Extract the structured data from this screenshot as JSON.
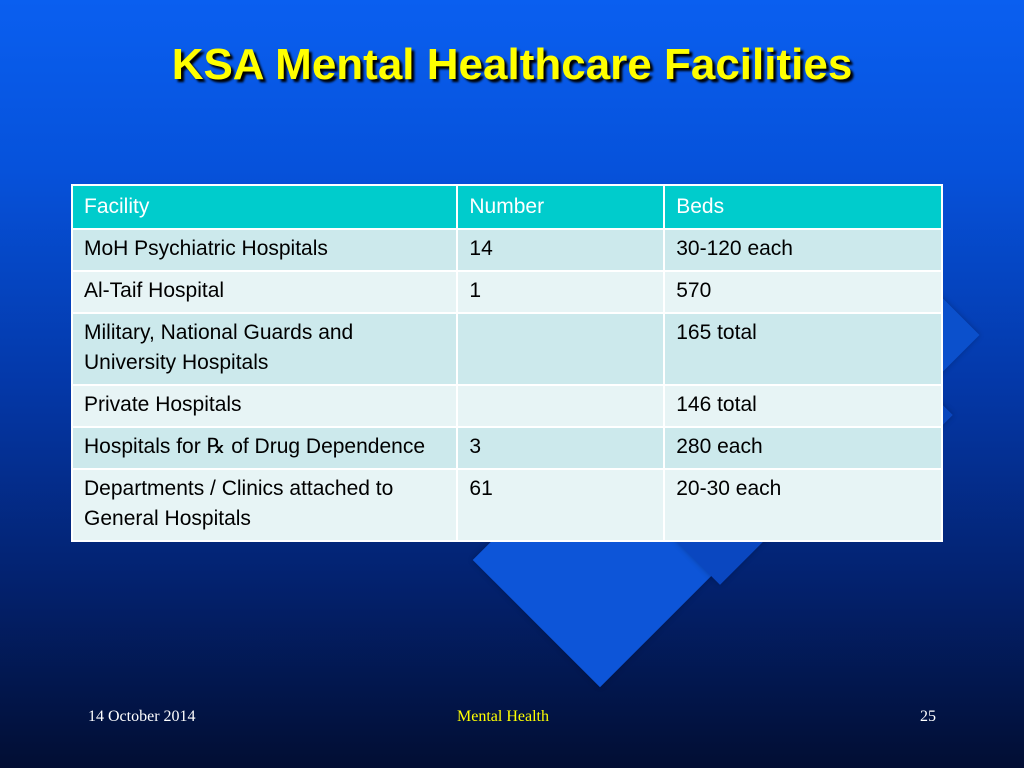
{
  "slide": {
    "title": "KSA Mental Healthcare Facilities",
    "table": {
      "headers": [
        "Facility",
        "Number",
        "Beds"
      ],
      "rows": [
        {
          "facility": "MoH Psychiatric Hospitals",
          "number": "14",
          "beds": "30-120 each"
        },
        {
          "facility": "Al-Taif Hospital",
          "number": "1",
          "beds": "570"
        },
        {
          "facility": "Military, National Guards and University Hospitals",
          "number": "",
          "beds": "165 total"
        },
        {
          "facility": "Private Hospitals",
          "number": "",
          "beds": "146 total"
        },
        {
          "facility": "Hospitals for ℞ of Drug Dependence",
          "number": "3",
          "beds": "280 each"
        },
        {
          "facility": "Departments / Clinics attached to General Hospitals",
          "number": "61",
          "beds": "20-30 each"
        }
      ]
    },
    "footer": {
      "date": "14 October 2014",
      "center": "Mental Health",
      "page": "25"
    },
    "colors": {
      "title": "#ffff00",
      "header_bg": "#00cccc",
      "row_odd": "#cce9ec",
      "row_even": "#e7f4f5"
    }
  }
}
